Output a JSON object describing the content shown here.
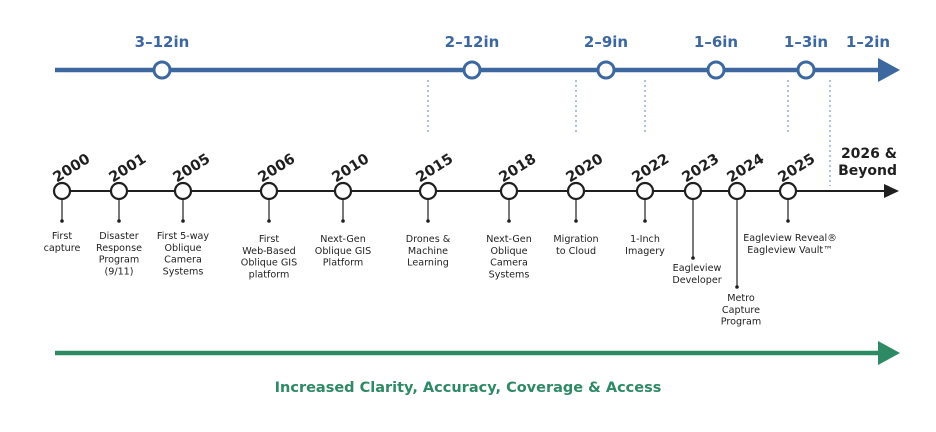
{
  "colors": {
    "resolution_line": "#3d679f",
    "resolution_dot_fill": "#ffffff",
    "timeline_line": "#1f1f1f",
    "footer_arrow": "#2e8a64",
    "dotted_guide": "#5b86c0"
  },
  "resolution_track": {
    "labels": [
      "3–12in",
      "2–12in",
      "2–9in",
      "1–6in",
      "1–3in",
      "1–2in"
    ]
  },
  "timeline": {
    "milestones": [
      {
        "year": "2000",
        "event": [
          "First",
          "capture"
        ]
      },
      {
        "year": "2001",
        "event": [
          "Disaster",
          "Response",
          "Program",
          "(9/11)"
        ]
      },
      {
        "year": "2005",
        "event": [
          "First 5-way",
          "Oblique",
          "Camera",
          "Systems"
        ]
      },
      {
        "year": "2006",
        "event": [
          "First",
          "Web-Based",
          "Oblique GIS",
          "platform"
        ]
      },
      {
        "year": "2010",
        "event": [
          "Next-Gen",
          "Oblique GIS",
          "Platform"
        ]
      },
      {
        "year": "2015",
        "event": [
          "Drones &",
          "Machine",
          "Learning"
        ]
      },
      {
        "year": "2018",
        "event": [
          "Next-Gen",
          "Oblique",
          "Camera",
          "Systems"
        ]
      },
      {
        "year": "2020",
        "event": [
          "Migration",
          "to Cloud"
        ]
      },
      {
        "year": "2022",
        "event": [
          "1-Inch",
          "Imagery"
        ]
      },
      {
        "year": "2023",
        "event": [
          "Eagleview",
          "Developer"
        ]
      },
      {
        "year": "2024",
        "event": [
          "Metro",
          "Capture",
          "Program"
        ]
      },
      {
        "year": "2025",
        "event": [
          "Eagleview Reveal®",
          "Eagleview Vault™"
        ]
      }
    ],
    "end_label": [
      "2026 &",
      "Beyond"
    ]
  },
  "footer": {
    "caption": "Increased Clarity, Accuracy, Coverage & Access"
  }
}
